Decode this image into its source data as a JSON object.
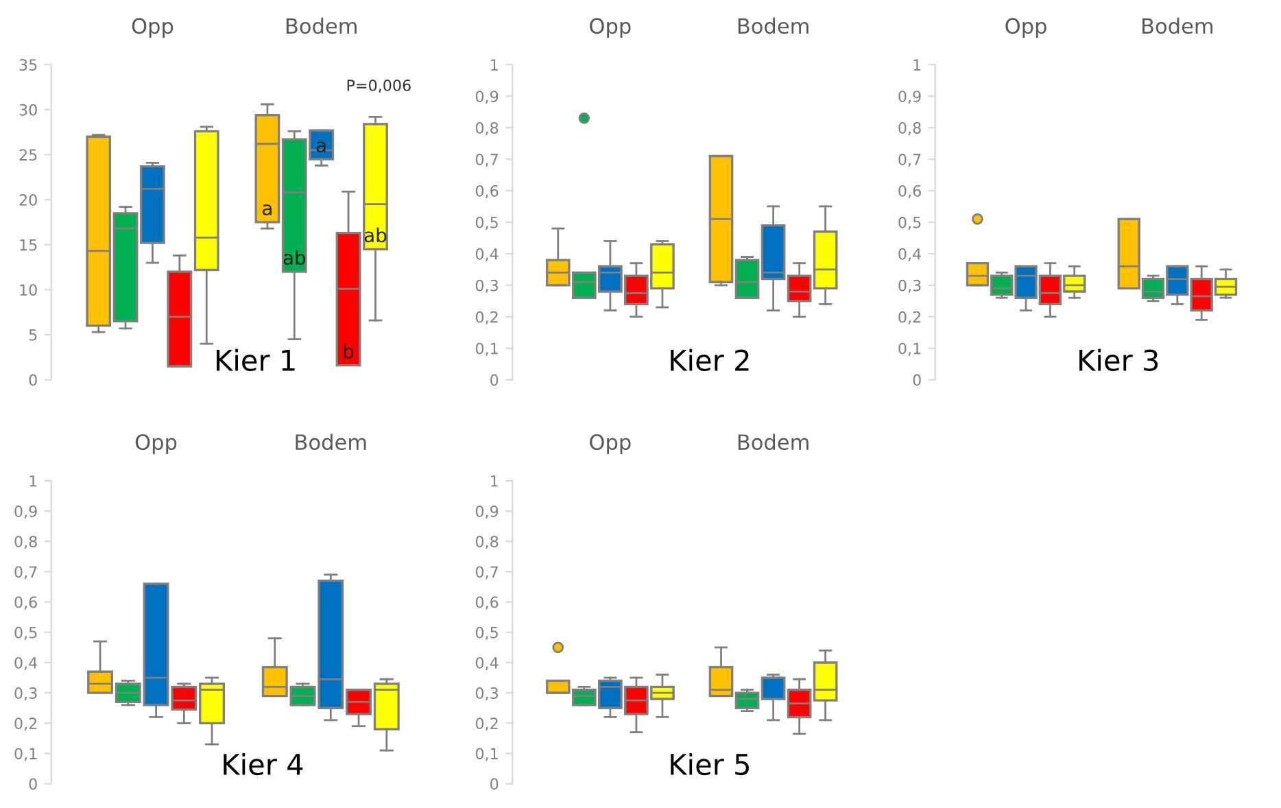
{
  "chart_data": [
    {
      "type": "box",
      "title": "Kier 1",
      "categories": [
        "Opp",
        "Bodem"
      ],
      "ylim": [
        0,
        35
      ],
      "yticks": [
        0,
        5,
        10,
        15,
        20,
        25,
        30,
        35
      ],
      "grid": false,
      "annotations": [
        "P=0,006"
      ],
      "series": [
        {
          "color": "#ffc000",
          "boxes": [
            {
              "low": 5.3,
              "q1": 6,
              "median": 14.3,
              "q3": 27,
              "high": 27.2
            },
            {
              "low": 16.8,
              "q1": 17.5,
              "median": 26.2,
              "q3": 29.4,
              "high": 30.6
            }
          ],
          "value_labels": [
            null,
            "a"
          ]
        },
        {
          "color": "#00b050",
          "boxes": [
            {
              "low": 5.7,
              "q1": 6.5,
              "median": 16.8,
              "q3": 18.5,
              "high": 19.2
            },
            {
              "low": 4.5,
              "q1": 12,
              "median": 20.8,
              "q3": 26.7,
              "high": 27.6
            }
          ],
          "value_labels": [
            null,
            "ab"
          ]
        },
        {
          "color": "#0070c0",
          "boxes": [
            {
              "low": 13,
              "q1": 15.2,
              "median": 21.2,
              "q3": 23.7,
              "high": 24.1
            },
            {
              "low": 23.8,
              "q1": 24.5,
              "median": 25.5,
              "q3": 27.7,
              "high": 27.7
            }
          ],
          "value_labels": [
            null,
            "a"
          ]
        },
        {
          "color": "#ff0000",
          "boxes": [
            {
              "low": 1.5,
              "q1": 1.5,
              "median": 7,
              "q3": 12,
              "high": 13.8
            },
            {
              "low": 1.6,
              "q1": 1.6,
              "median": 10.1,
              "q3": 16.3,
              "high": 20.9
            }
          ],
          "value_labels": [
            null,
            "b"
          ]
        },
        {
          "color": "#ffff00",
          "boxes": [
            {
              "low": 4,
              "q1": 12.2,
              "median": 15.8,
              "q3": 27.6,
              "high": 28.1
            },
            {
              "low": 6.6,
              "q1": 14.5,
              "median": 19.5,
              "q3": 28.4,
              "high": 29.2
            }
          ],
          "value_labels": [
            null,
            "ab"
          ]
        }
      ]
    },
    {
      "type": "box",
      "title": "Kier 2",
      "categories": [
        "Opp",
        "Bodem"
      ],
      "ylim": [
        0,
        1
      ],
      "yticks": [
        0,
        {
          "value": 0.1,
          "label": "0,1"
        },
        {
          "value": 0.2,
          "label": "0,2"
        },
        {
          "value": 0.3,
          "label": "0,3"
        },
        {
          "value": 0.4,
          "label": "0,4"
        },
        {
          "value": 0.5,
          "label": "0,5"
        },
        {
          "value": 0.6,
          "label": "0,6"
        },
        {
          "value": 0.7,
          "label": "0,7"
        },
        {
          "value": 0.8,
          "label": "0,8"
        },
        {
          "value": 0.9,
          "label": "0,9"
        },
        1
      ],
      "grid": false,
      "series": [
        {
          "color": "#ffc000",
          "boxes": [
            {
              "low": 0.3,
              "q1": 0.3,
              "median": 0.34,
              "q3": 0.38,
              "high": 0.48
            },
            {
              "low": 0.3,
              "q1": 0.31,
              "median": 0.51,
              "q3": 0.71,
              "high": 0.71
            }
          ]
        },
        {
          "color": "#00b050",
          "boxes": [
            {
              "low": 0.26,
              "q1": 0.26,
              "median": 0.31,
              "q3": 0.34,
              "high": 0.34,
              "outliers": [
                0.83
              ]
            },
            {
              "low": 0.26,
              "q1": 0.26,
              "median": 0.31,
              "q3": 0.38,
              "high": 0.39
            }
          ]
        },
        {
          "color": "#0070c0",
          "boxes": [
            {
              "low": 0.22,
              "q1": 0.28,
              "median": 0.34,
              "q3": 0.36,
              "high": 0.44
            },
            {
              "low": 0.22,
              "q1": 0.32,
              "median": 0.34,
              "q3": 0.49,
              "high": 0.55
            }
          ]
        },
        {
          "color": "#ff0000",
          "boxes": [
            {
              "low": 0.2,
              "q1": 0.24,
              "median": 0.275,
              "q3": 0.33,
              "high": 0.37
            },
            {
              "low": 0.2,
              "q1": 0.25,
              "median": 0.28,
              "q3": 0.33,
              "high": 0.37
            }
          ]
        },
        {
          "color": "#ffff00",
          "boxes": [
            {
              "low": 0.23,
              "q1": 0.29,
              "median": 0.34,
              "q3": 0.43,
              "high": 0.44
            },
            {
              "low": 0.24,
              "q1": 0.29,
              "median": 0.35,
              "q3": 0.47,
              "high": 0.55
            }
          ]
        }
      ]
    },
    {
      "type": "box",
      "title": "Kier 3",
      "categories": [
        "Opp",
        "Bodem"
      ],
      "ylim": [
        0,
        1
      ],
      "yticks": [
        0,
        {
          "value": 0.1,
          "label": "0,1"
        },
        {
          "value": 0.2,
          "label": "0,2"
        },
        {
          "value": 0.3,
          "label": "0,3"
        },
        {
          "value": 0.4,
          "label": "0,4"
        },
        {
          "value": 0.5,
          "label": "0,5"
        },
        {
          "value": 0.6,
          "label": "0,6"
        },
        {
          "value": 0.7,
          "label": "0,7"
        },
        {
          "value": 0.8,
          "label": "0,8"
        },
        {
          "value": 0.9,
          "label": "0,9"
        },
        1
      ],
      "grid": false,
      "series": [
        {
          "color": "#ffc000",
          "boxes": [
            {
              "low": 0.3,
              "q1": 0.3,
              "median": 0.33,
              "q3": 0.37,
              "high": 0.37,
              "outliers": [
                0.51
              ]
            },
            {
              "low": 0.29,
              "q1": 0.29,
              "median": 0.36,
              "q3": 0.51,
              "high": 0.51
            }
          ]
        },
        {
          "color": "#00b050",
          "boxes": [
            {
              "low": 0.26,
              "q1": 0.27,
              "median": 0.29,
              "q3": 0.33,
              "high": 0.34
            },
            {
              "low": 0.25,
              "q1": 0.26,
              "median": 0.28,
              "q3": 0.32,
              "high": 0.33
            }
          ]
        },
        {
          "color": "#0070c0",
          "boxes": [
            {
              "low": 0.22,
              "q1": 0.26,
              "median": 0.33,
              "q3": 0.36,
              "high": 0.36
            },
            {
              "low": 0.24,
              "q1": 0.27,
              "median": 0.32,
              "q3": 0.36,
              "high": 0.36
            }
          ]
        },
        {
          "color": "#ff0000",
          "boxes": [
            {
              "low": 0.2,
              "q1": 0.24,
              "median": 0.275,
              "q3": 0.33,
              "high": 0.37
            },
            {
              "low": 0.19,
              "q1": 0.22,
              "median": 0.265,
              "q3": 0.32,
              "high": 0.36
            }
          ]
        },
        {
          "color": "#ffff00",
          "boxes": [
            {
              "low": 0.26,
              "q1": 0.28,
              "median": 0.3,
              "q3": 0.33,
              "high": 0.36
            },
            {
              "low": 0.26,
              "q1": 0.27,
              "median": 0.295,
              "q3": 0.32,
              "high": 0.35
            }
          ]
        }
      ]
    },
    {
      "type": "box",
      "title": "Kier 4",
      "categories": [
        "Opp",
        "Bodem"
      ],
      "ylim": [
        0,
        1
      ],
      "yticks": [
        0,
        {
          "value": 0.1,
          "label": "0,1"
        },
        {
          "value": 0.2,
          "label": "0,2"
        },
        {
          "value": 0.3,
          "label": "0,3"
        },
        {
          "value": 0.4,
          "label": "0,4"
        },
        {
          "value": 0.5,
          "label": "0,5"
        },
        {
          "value": 0.6,
          "label": "0,6"
        },
        {
          "value": 0.7,
          "label": "0,7"
        },
        {
          "value": 0.8,
          "label": "0,8"
        },
        {
          "value": 0.9,
          "label": "0,9"
        },
        1
      ],
      "grid": false,
      "series": [
        {
          "color": "#ffc000",
          "boxes": [
            {
              "low": 0.3,
              "q1": 0.3,
              "median": 0.33,
              "q3": 0.37,
              "high": 0.47
            },
            {
              "low": 0.29,
              "q1": 0.29,
              "median": 0.32,
              "q3": 0.385,
              "high": 0.48
            }
          ]
        },
        {
          "color": "#00b050",
          "boxes": [
            {
              "low": 0.26,
              "q1": 0.27,
              "median": 0.3,
              "q3": 0.33,
              "high": 0.34
            },
            {
              "low": 0.26,
              "q1": 0.26,
              "median": 0.29,
              "q3": 0.32,
              "high": 0.33
            }
          ]
        },
        {
          "color": "#0070c0",
          "boxes": [
            {
              "low": 0.22,
              "q1": 0.26,
              "median": 0.35,
              "q3": 0.66,
              "high": 0.66
            },
            {
              "low": 0.21,
              "q1": 0.25,
              "median": 0.345,
              "q3": 0.67,
              "high": 0.69
            }
          ]
        },
        {
          "color": "#ff0000",
          "boxes": [
            {
              "low": 0.2,
              "q1": 0.245,
              "median": 0.275,
              "q3": 0.32,
              "high": 0.33
            },
            {
              "low": 0.19,
              "q1": 0.23,
              "median": 0.27,
              "q3": 0.31,
              "high": 0.31
            }
          ]
        },
        {
          "color": "#ffff00",
          "boxes": [
            {
              "low": 0.13,
              "q1": 0.2,
              "median": 0.31,
              "q3": 0.33,
              "high": 0.35
            },
            {
              "low": 0.11,
              "q1": 0.18,
              "median": 0.31,
              "q3": 0.33,
              "high": 0.345
            }
          ]
        }
      ]
    },
    {
      "type": "box",
      "title": "Kier 5",
      "categories": [
        "Opp",
        "Bodem"
      ],
      "ylim": [
        0,
        1
      ],
      "yticks": [
        0,
        {
          "value": 0.1,
          "label": "0,1"
        },
        {
          "value": 0.2,
          "label": "0,2"
        },
        {
          "value": 0.3,
          "label": "0,3"
        },
        {
          "value": 0.4,
          "label": "0,4"
        },
        {
          "value": 0.5,
          "label": "0,5"
        },
        {
          "value": 0.6,
          "label": "0,6"
        },
        {
          "value": 0.7,
          "label": "0,7"
        },
        {
          "value": 0.8,
          "label": "0,8"
        },
        {
          "value": 0.9,
          "label": "0,9"
        },
        1
      ],
      "grid": false,
      "series": [
        {
          "color": "#ffc000",
          "boxes": [
            {
              "low": 0.3,
              "q1": 0.3,
              "median": 0.3,
              "q3": 0.34,
              "high": 0.34,
              "outliers": [
                0.45
              ]
            },
            {
              "low": 0.29,
              "q1": 0.29,
              "median": 0.31,
              "q3": 0.385,
              "high": 0.45
            }
          ]
        },
        {
          "color": "#00b050",
          "boxes": [
            {
              "low": 0.26,
              "q1": 0.26,
              "median": 0.29,
              "q3": 0.31,
              "high": 0.32
            },
            {
              "low": 0.24,
              "q1": 0.25,
              "median": 0.28,
              "q3": 0.3,
              "high": 0.31
            }
          ]
        },
        {
          "color": "#0070c0",
          "boxes": [
            {
              "low": 0.22,
              "q1": 0.25,
              "median": 0.32,
              "q3": 0.34,
              "high": 0.35
            },
            {
              "low": 0.21,
              "q1": 0.28,
              "median": 0.35,
              "q3": 0.35,
              "high": 0.36
            }
          ]
        },
        {
          "color": "#ff0000",
          "boxes": [
            {
              "low": 0.17,
              "q1": 0.23,
              "median": 0.275,
              "q3": 0.32,
              "high": 0.35
            },
            {
              "low": 0.165,
              "q1": 0.22,
              "median": 0.265,
              "q3": 0.31,
              "high": 0.345
            }
          ]
        },
        {
          "color": "#ffff00",
          "boxes": [
            {
              "low": 0.22,
              "q1": 0.28,
              "median": 0.3,
              "q3": 0.32,
              "high": 0.36
            },
            {
              "low": 0.21,
              "q1": 0.275,
              "median": 0.31,
              "q3": 0.4,
              "high": 0.44
            }
          ]
        }
      ]
    }
  ]
}
